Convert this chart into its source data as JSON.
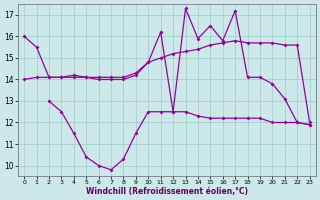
{
  "xlabel": "Windchill (Refroidissement éolien,°C)",
  "background_color": "#cce8e8",
  "line_color": "#990099",
  "grid_color": "#99cccc",
  "xlim": [
    -0.5,
    23.5
  ],
  "ylim": [
    9.5,
    17.5
  ],
  "yticks": [
    10,
    11,
    12,
    13,
    14,
    15,
    16,
    17
  ],
  "xticks": [
    0,
    1,
    2,
    3,
    4,
    5,
    6,
    7,
    8,
    9,
    10,
    11,
    12,
    13,
    14,
    15,
    16,
    17,
    18,
    19,
    20,
    21,
    22,
    23
  ],
  "line1_x": [
    0,
    1,
    2,
    3,
    4,
    5,
    6,
    7,
    8,
    9,
    10,
    11,
    12,
    13,
    14,
    15,
    16,
    17,
    18,
    19,
    20,
    21,
    22,
    23
  ],
  "line1_y": [
    16.0,
    15.5,
    14.1,
    14.1,
    14.1,
    14.1,
    14.1,
    14.1,
    14.1,
    14.3,
    14.8,
    16.2,
    12.5,
    17.3,
    15.9,
    16.5,
    15.8,
    17.2,
    14.1,
    14.1,
    13.8,
    13.1,
    12.0,
    11.9
  ],
  "line2_x": [
    0,
    1,
    2,
    3,
    4,
    5,
    6,
    7,
    8,
    9,
    10,
    11,
    12,
    13,
    14,
    15,
    16,
    17,
    18,
    19,
    20,
    21,
    22,
    23
  ],
  "line2_y": [
    14.0,
    14.1,
    14.1,
    14.1,
    14.2,
    14.1,
    14.0,
    14.0,
    14.0,
    14.2,
    14.8,
    15.0,
    15.2,
    15.3,
    15.4,
    15.6,
    15.7,
    15.8,
    15.7,
    15.7,
    15.7,
    15.6,
    15.6,
    12.0
  ],
  "line3_x": [
    2,
    3,
    4,
    5,
    6,
    7,
    8,
    9,
    10,
    11,
    12,
    13,
    14,
    15,
    16,
    17,
    18,
    19,
    20,
    21,
    22,
    23
  ],
  "line3_y": [
    13.0,
    12.5,
    11.5,
    10.4,
    10.0,
    9.8,
    10.3,
    11.5,
    12.5,
    12.5,
    12.5,
    12.5,
    12.3,
    12.2,
    12.2,
    12.2,
    12.2,
    12.2,
    12.0,
    12.0,
    12.0,
    11.9
  ]
}
